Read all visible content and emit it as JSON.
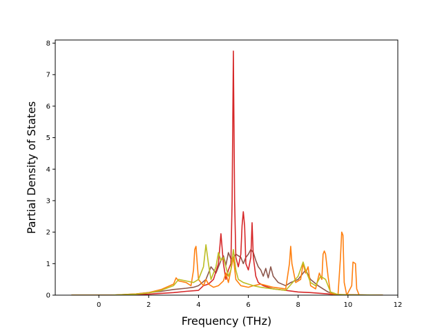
{
  "chart_data": {
    "type": "line",
    "title": "",
    "xlabel": "Frequency (THz)",
    "ylabel": "Partial Density of States",
    "xlim": [
      -1.75,
      12
    ],
    "ylim": [
      0,
      8.1
    ],
    "xticks": [
      0,
      2,
      4,
      6,
      8,
      10,
      12
    ],
    "yticks": [
      0,
      1,
      2,
      3,
      4,
      5,
      6,
      7,
      8
    ],
    "grid": false,
    "legend": "none",
    "series": [
      {
        "color": "#8c564b",
        "points": [
          [
            -1.1,
            0
          ],
          [
            0.5,
            0
          ],
          [
            1.5,
            0.04
          ],
          [
            2.0,
            0.08
          ],
          [
            2.5,
            0.12
          ],
          [
            3.0,
            0.18
          ],
          [
            3.5,
            0.22
          ],
          [
            3.8,
            0.25
          ],
          [
            4.0,
            0.3
          ],
          [
            4.3,
            0.5
          ],
          [
            4.5,
            0.9
          ],
          [
            4.7,
            0.7
          ],
          [
            4.9,
            1.1
          ],
          [
            5.0,
            1.25
          ],
          [
            5.1,
            0.95
          ],
          [
            5.2,
            1.35
          ],
          [
            5.3,
            1.15
          ],
          [
            5.4,
            1.2
          ],
          [
            5.5,
            1.3
          ],
          [
            5.6,
            1.25
          ],
          [
            5.7,
            1.2
          ],
          [
            5.8,
            1.0
          ],
          [
            5.9,
            1.2
          ],
          [
            6.0,
            1.3
          ],
          [
            6.1,
            1.45
          ],
          [
            6.2,
            1.35
          ],
          [
            6.3,
            1.1
          ],
          [
            6.4,
            0.9
          ],
          [
            6.5,
            0.8
          ],
          [
            6.6,
            0.6
          ],
          [
            6.7,
            0.85
          ],
          [
            6.8,
            0.55
          ],
          [
            6.9,
            0.9
          ],
          [
            7.0,
            0.6
          ],
          [
            7.2,
            0.4
          ],
          [
            7.5,
            0.3
          ],
          [
            7.7,
            0.4
          ],
          [
            8.0,
            0.5
          ],
          [
            8.3,
            0.8
          ],
          [
            8.5,
            0.5
          ],
          [
            8.8,
            0.3
          ],
          [
            9.0,
            0.2
          ],
          [
            9.2,
            0.1
          ],
          [
            9.5,
            0.02
          ],
          [
            10.0,
            0.01
          ],
          [
            11.4,
            0
          ]
        ]
      },
      {
        "color": "#d62728",
        "points": [
          [
            -1.1,
            0
          ],
          [
            1.0,
            0
          ],
          [
            2.0,
            0.03
          ],
          [
            3.0,
            0.08
          ],
          [
            3.5,
            0.12
          ],
          [
            4.0,
            0.15
          ],
          [
            4.2,
            0.3
          ],
          [
            4.4,
            0.35
          ],
          [
            4.6,
            0.5
          ],
          [
            4.8,
            1.0
          ],
          [
            4.9,
            1.95
          ],
          [
            5.0,
            1.0
          ],
          [
            5.1,
            0.5
          ],
          [
            5.2,
            0.8
          ],
          [
            5.3,
            1.0
          ],
          [
            5.35,
            3.0
          ],
          [
            5.4,
            7.75
          ],
          [
            5.45,
            3.0
          ],
          [
            5.5,
            1.2
          ],
          [
            5.6,
            0.9
          ],
          [
            5.7,
            1.3
          ],
          [
            5.75,
            2.2
          ],
          [
            5.8,
            2.65
          ],
          [
            5.85,
            2.2
          ],
          [
            5.9,
            1.0
          ],
          [
            6.0,
            0.8
          ],
          [
            6.1,
            1.2
          ],
          [
            6.15,
            2.3
          ],
          [
            6.2,
            1.2
          ],
          [
            6.3,
            0.6
          ],
          [
            6.4,
            0.4
          ],
          [
            6.6,
            0.3
          ],
          [
            7.0,
            0.2
          ],
          [
            7.5,
            0.15
          ],
          [
            8.0,
            0.1
          ],
          [
            8.5,
            0.08
          ],
          [
            9.0,
            0.05
          ],
          [
            9.5,
            0.02
          ],
          [
            11.4,
            0
          ]
        ]
      },
      {
        "color": "#ff7f0e",
        "points": [
          [
            -1.1,
            0
          ],
          [
            0.5,
            0
          ],
          [
            1.5,
            0.04
          ],
          [
            2.0,
            0.08
          ],
          [
            2.5,
            0.18
          ],
          [
            3.0,
            0.35
          ],
          [
            3.1,
            0.55
          ],
          [
            3.2,
            0.45
          ],
          [
            3.5,
            0.4
          ],
          [
            3.7,
            0.3
          ],
          [
            3.8,
            0.8
          ],
          [
            3.85,
            1.45
          ],
          [
            3.9,
            1.55
          ],
          [
            3.95,
            1.0
          ],
          [
            4.0,
            0.5
          ],
          [
            4.2,
            0.3
          ],
          [
            4.3,
            0.5
          ],
          [
            4.4,
            0.35
          ],
          [
            4.6,
            0.25
          ],
          [
            4.8,
            0.3
          ],
          [
            5.0,
            0.45
          ],
          [
            5.1,
            0.7
          ],
          [
            5.2,
            0.4
          ],
          [
            5.4,
            1.2
          ],
          [
            5.5,
            0.5
          ],
          [
            5.7,
            0.3
          ],
          [
            6.0,
            0.25
          ],
          [
            6.2,
            0.3
          ],
          [
            6.5,
            0.35
          ],
          [
            7.0,
            0.25
          ],
          [
            7.5,
            0.2
          ],
          [
            7.65,
            1.0
          ],
          [
            7.7,
            1.55
          ],
          [
            7.75,
            1.0
          ],
          [
            7.9,
            0.4
          ],
          [
            8.1,
            0.5
          ],
          [
            8.2,
            1.0
          ],
          [
            8.3,
            0.7
          ],
          [
            8.4,
            0.9
          ],
          [
            8.5,
            0.3
          ],
          [
            8.7,
            0.2
          ],
          [
            8.85,
            0.7
          ],
          [
            8.95,
            0.5
          ],
          [
            9.0,
            1.3
          ],
          [
            9.05,
            1.4
          ],
          [
            9.1,
            1.3
          ],
          [
            9.2,
            0.6
          ],
          [
            9.3,
            0.05
          ],
          [
            9.6,
            0
          ],
          [
            9.7,
            1.2
          ],
          [
            9.75,
            2.0
          ],
          [
            9.8,
            1.9
          ],
          [
            9.85,
            0.4
          ],
          [
            9.95,
            0
          ],
          [
            10.15,
            0.3
          ],
          [
            10.2,
            1.05
          ],
          [
            10.3,
            1.0
          ],
          [
            10.35,
            0.2
          ],
          [
            10.45,
            0
          ],
          [
            11.4,
            0
          ]
        ]
      },
      {
        "color": "#bcbd22",
        "points": [
          [
            -1.1,
            0
          ],
          [
            0.5,
            0
          ],
          [
            1.5,
            0.03
          ],
          [
            2.0,
            0.07
          ],
          [
            2.5,
            0.15
          ],
          [
            3.0,
            0.3
          ],
          [
            3.2,
            0.5
          ],
          [
            3.5,
            0.45
          ],
          [
            3.8,
            0.4
          ],
          [
            4.0,
            0.5
          ],
          [
            4.2,
            0.9
          ],
          [
            4.3,
            1.6
          ],
          [
            4.4,
            1.0
          ],
          [
            4.5,
            0.5
          ],
          [
            4.7,
            0.9
          ],
          [
            4.8,
            1.35
          ],
          [
            4.9,
            1.1
          ],
          [
            5.0,
            1.2
          ],
          [
            5.1,
            0.9
          ],
          [
            5.2,
            0.6
          ],
          [
            5.3,
            0.8
          ],
          [
            5.4,
            1.45
          ],
          [
            5.5,
            0.8
          ],
          [
            5.6,
            0.5
          ],
          [
            5.8,
            0.4
          ],
          [
            6.0,
            0.35
          ],
          [
            6.2,
            0.3
          ],
          [
            6.5,
            0.25
          ],
          [
            7.0,
            0.2
          ],
          [
            7.5,
            0.15
          ],
          [
            8.0,
            0.6
          ],
          [
            8.2,
            1.05
          ],
          [
            8.3,
            0.8
          ],
          [
            8.5,
            0.4
          ],
          [
            8.7,
            0.3
          ],
          [
            8.9,
            0.6
          ],
          [
            9.1,
            0.5
          ],
          [
            9.3,
            0.1
          ],
          [
            9.6,
            0.02
          ],
          [
            10.0,
            0.01
          ],
          [
            11.4,
            0
          ]
        ]
      }
    ]
  }
}
